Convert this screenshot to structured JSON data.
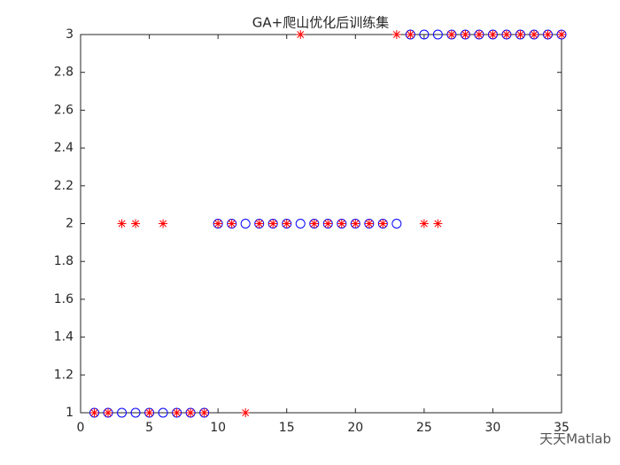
{
  "chart_data": {
    "type": "scatter",
    "title": "GA+爬山优化后训练集",
    "x": [
      1,
      2,
      3,
      4,
      5,
      6,
      7,
      8,
      9,
      10,
      11,
      12,
      13,
      14,
      15,
      16,
      17,
      18,
      19,
      20,
      21,
      22,
      23,
      24,
      25,
      26,
      27,
      28,
      29,
      30,
      31,
      32,
      33,
      34,
      35
    ],
    "series": [
      {
        "color": "#0000ff",
        "marker": "o",
        "values": [
          1,
          1,
          1,
          1,
          1,
          1,
          1,
          1,
          1,
          2,
          2,
          2,
          2,
          2,
          2,
          2,
          2,
          2,
          2,
          2,
          2,
          2,
          2,
          3,
          3,
          3,
          3,
          3,
          3,
          3,
          3,
          3,
          3,
          3,
          3
        ]
      },
      {
        "color": "#ff0000",
        "marker": "*",
        "values": [
          1,
          1,
          2,
          2,
          1,
          2,
          1,
          1,
          1,
          2,
          2,
          1,
          2,
          2,
          2,
          3,
          2,
          2,
          2,
          2,
          2,
          2,
          3,
          3,
          2,
          2,
          3,
          3,
          3,
          3,
          3,
          3,
          3,
          3,
          3
        ]
      }
    ],
    "xlim": [
      0,
      35
    ],
    "xticks": [
      0,
      5,
      10,
      15,
      20,
      25,
      30,
      35
    ],
    "ylim": [
      1,
      3
    ],
    "yticks": [
      1,
      1.2,
      1.4,
      1.6,
      1.8,
      2,
      2.2,
      2.4,
      2.6,
      2.8,
      3
    ],
    "grid": false,
    "watermark": "天天Matlab"
  }
}
